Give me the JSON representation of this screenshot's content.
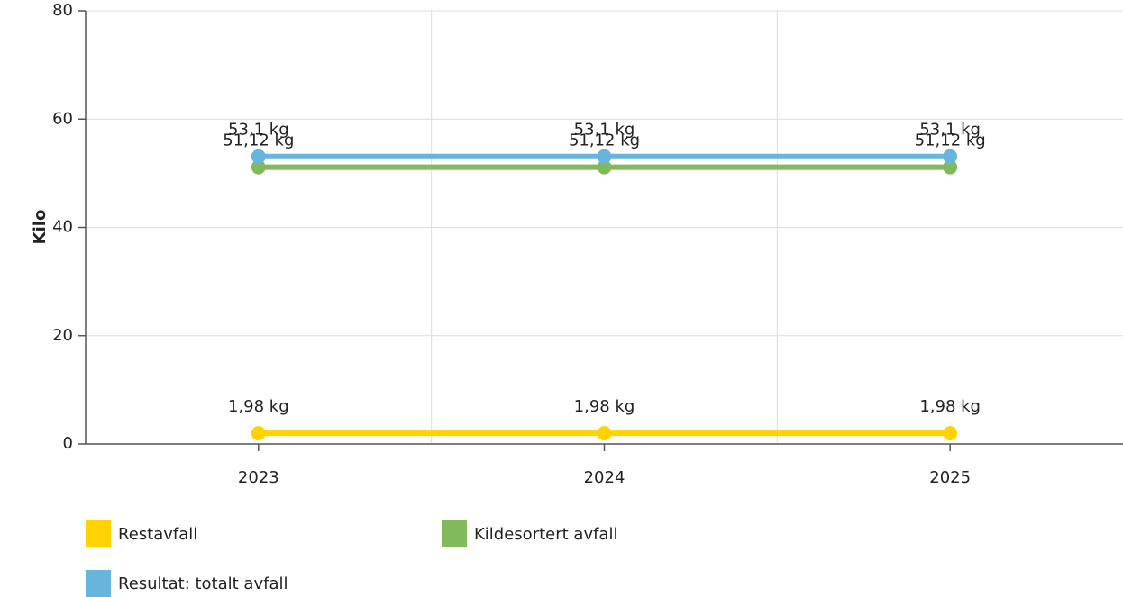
{
  "chart_data": {
    "type": "line",
    "y_label": "Kilo",
    "categories": [
      "2023",
      "2024",
      "2025"
    ],
    "series": [
      {
        "name": "Restavfall",
        "color": "#ffd200",
        "values": [
          1.98,
          1.98,
          1.98
        ],
        "value_labels": [
          "1,98 kg",
          "1,98 kg",
          "1,98 kg"
        ]
      },
      {
        "name": "Kildesortert avfall",
        "color": "#82b95a",
        "values": [
          51.12,
          51.12,
          51.12
        ],
        "value_labels": [
          "51,12 kg",
          "51,12 kg",
          "51,12 kg"
        ]
      },
      {
        "name": "Resultat: totalt avfall",
        "color": "#66b5dc",
        "values": [
          53.1,
          53.1,
          53.1
        ],
        "value_labels": [
          "53,1 kg",
          "53,1 kg",
          "53,1 kg"
        ]
      }
    ],
    "ylim": [
      0,
      80
    ],
    "yticks": [
      0,
      20,
      40,
      60,
      80
    ],
    "grid": true
  }
}
